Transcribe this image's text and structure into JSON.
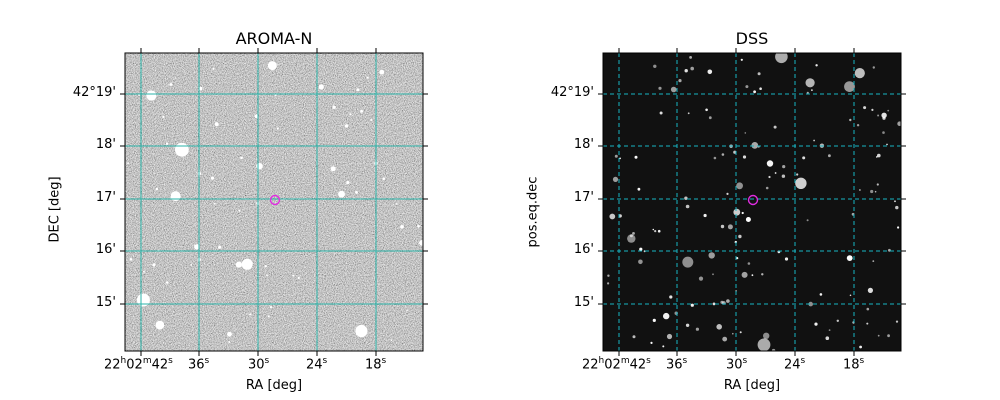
{
  "panels": [
    {
      "title": "AROMA-N",
      "xlabel": "RA [deg]",
      "ylabel": "DEC [deg]",
      "yticks": [
        "42°19'",
        "18'",
        "17'",
        "16'",
        "15'"
      ],
      "xticks": [
        {
          "h": "22",
          "m": "02",
          "s": "42",
          "full": true
        },
        {
          "s": "36"
        },
        {
          "s": "30"
        },
        {
          "s": "24"
        },
        {
          "s": "18"
        }
      ],
      "background": "#808080",
      "grid_color": "#2ab3a8",
      "grid_style": "solid"
    },
    {
      "title": "DSS",
      "xlabel": "RA [deg]",
      "ylabel": "pos.eq.dec",
      "yticks": [
        "42°19'",
        "18'",
        "17'",
        "16'",
        "15'"
      ],
      "xticks": [
        {
          "h": "22",
          "m": "02",
          "s": "42",
          "full": true
        },
        {
          "s": "36"
        },
        {
          "s": "30"
        },
        {
          "s": "24"
        },
        {
          "s": "18"
        }
      ],
      "background": "#111111",
      "grid_color": "#18b5c4",
      "grid_style": "dashed"
    }
  ],
  "marker_color": "#e02ce0"
}
